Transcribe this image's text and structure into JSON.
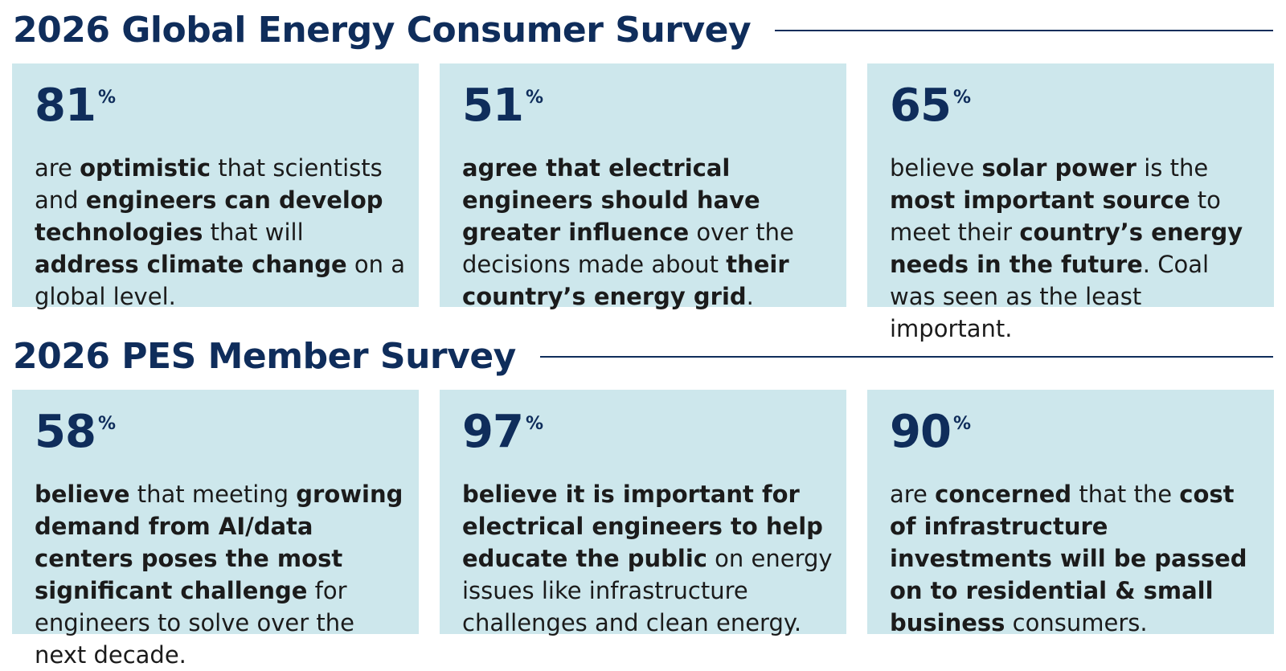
{
  "sections": [
    {
      "title": "2026 Global Energy Consumer Survey",
      "cards": [
        {
          "value": "81",
          "unit": "%",
          "segments": [
            {
              "t": "are ",
              "b": false
            },
            {
              "t": "optimistic",
              "b": true
            },
            {
              "t": " that scientists and ",
              "b": false
            },
            {
              "t": "engineers can develop technologies",
              "b": true
            },
            {
              "t": " that will ",
              "b": false
            },
            {
              "t": "address climate change",
              "b": true
            },
            {
              "t": " on a global level.",
              "b": false
            }
          ]
        },
        {
          "value": "51",
          "unit": "%",
          "segments": [
            {
              "t": "agree that electrical engineers should have greater influence",
              "b": true
            },
            {
              "t": " over the decisions made about ",
              "b": false
            },
            {
              "t": "their country’s energy grid",
              "b": true
            },
            {
              "t": ".",
              "b": false
            }
          ]
        },
        {
          "value": "65",
          "unit": "%",
          "segments": [
            {
              "t": "believe ",
              "b": false
            },
            {
              "t": "solar power",
              "b": true
            },
            {
              "t": " is the ",
              "b": false
            },
            {
              "t": "most important source",
              "b": true
            },
            {
              "t": " to meet their ",
              "b": false
            },
            {
              "t": "country’s energy needs in the future",
              "b": true
            },
            {
              "t": ". Coal was seen as the least important.",
              "b": false
            }
          ]
        }
      ]
    },
    {
      "title": "2026 PES Member Survey",
      "cards": [
        {
          "value": "58",
          "unit": "%",
          "segments": [
            {
              "t": "believe",
              "b": true
            },
            {
              "t": " that meeting ",
              "b": false
            },
            {
              "t": "growing demand from AI/data centers poses the most significant challenge",
              "b": true
            },
            {
              "t": " for engineers to solve over the next decade.",
              "b": false
            }
          ]
        },
        {
          "value": "97",
          "unit": "%",
          "segments": [
            {
              "t": "believe it is important for electrical engineers to help educate the public",
              "b": true
            },
            {
              "t": " on energy issues like infrastructure challenges and clean energy.",
              "b": false
            }
          ]
        },
        {
          "value": "90",
          "unit": "%",
          "segments": [
            {
              "t": "are ",
              "b": false
            },
            {
              "t": "concerned",
              "b": true
            },
            {
              "t": " that the ",
              "b": false
            },
            {
              "t": "cost of infrastructure investments will be passed on to residential & small business",
              "b": true
            },
            {
              "t": " consumers.",
              "b": false
            }
          ]
        }
      ]
    }
  ],
  "colors": {
    "heading": "#0f2d5b",
    "card_background": "#cde7ec",
    "body_text": "#1b1b1b"
  }
}
